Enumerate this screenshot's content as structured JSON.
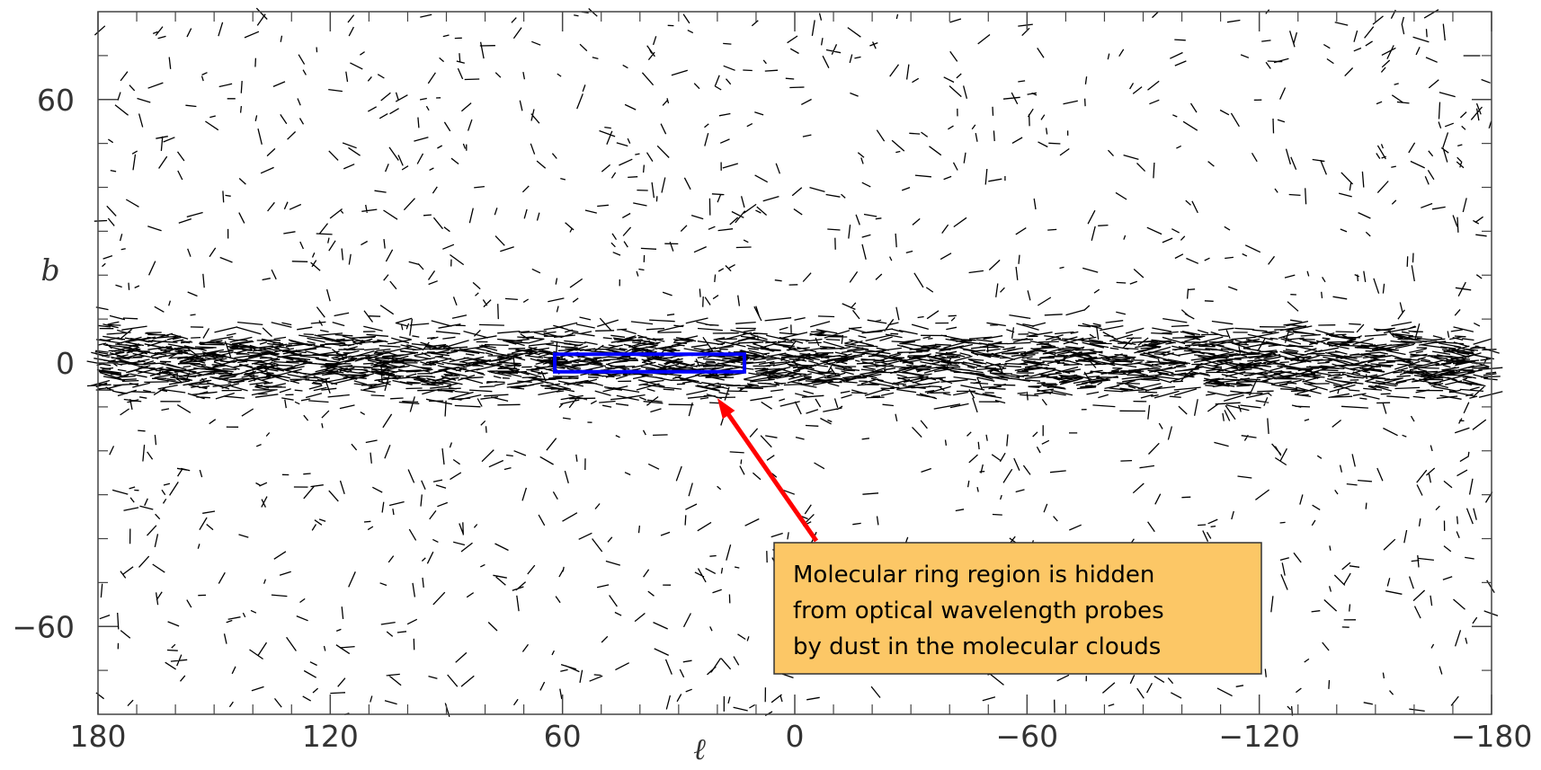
{
  "chart_data": {
    "type": "vector-map",
    "xlabel": "ℓ",
    "ylabel": "b",
    "xlim": [
      180,
      -180
    ],
    "ylim": [
      -80,
      80
    ],
    "xticks": [
      180,
      120,
      60,
      0,
      {
        "value": -60,
        "label": "−60"
      },
      {
        "value": -120,
        "label": "−120"
      },
      {
        "value": -180,
        "label": "−180"
      }
    ],
    "yticks": [
      {
        "value": -60,
        "label": "−60"
      },
      0,
      60
    ],
    "xminorticks": [
      170,
      160,
      150,
      140,
      130,
      110,
      100,
      90,
      80,
      70,
      50,
      40,
      30,
      20,
      10,
      -10,
      -20,
      -30,
      -40,
      -50,
      -70,
      -80,
      -90,
      -100,
      -110,
      -130,
      -140,
      -150,
      -160,
      -170
    ],
    "yminorticks": [
      -70,
      -50,
      -40,
      -30,
      -20,
      -10,
      10,
      20,
      30,
      40,
      50,
      70
    ],
    "highlight": {
      "xlim": [
        62,
        13
      ],
      "ylim": [
        -2,
        2
      ],
      "color": "#0000ff"
    },
    "annotation": {
      "lines": [
        "Molecular ring region is hidden",
        "from optical wavelength probes",
        "by dust in the molecular clouds"
      ],
      "color": "#fcc766",
      "arrow_color": "#ff0000",
      "arrow_tip": [
        20,
        -8
      ]
    }
  }
}
